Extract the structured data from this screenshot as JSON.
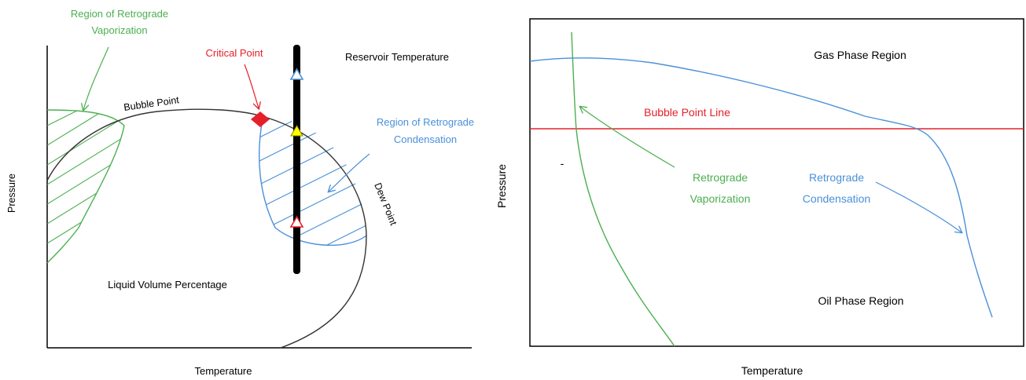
{
  "left_diagram": {
    "vaporization_label_line1": "Region of Retrograde",
    "vaporization_label_line2": "Vaporization",
    "critical_point_label": "Critical Point",
    "reservoir_temperature_label": "Reservoir Temperature",
    "bubble_point_label": "Bubble Point",
    "condensation_label_line1": "Region of Retrograde",
    "condensation_label_line2": "Condensation",
    "dew_point_label": "Dew Point",
    "liquid_volume_label": "Liquid Volume Percentage",
    "x_axis_label": "Temperature",
    "y_axis_label": "Pressure"
  },
  "right_diagram": {
    "gas_phase_label": "Gas Phase Region",
    "bubble_point_line_label": "Bubble Point Line",
    "retro_vaporization_line1": "Retrograde",
    "retro_vaporization_line2": "Vaporization",
    "retro_condensation_line1": "Retrograde",
    "retro_condensation_line2": "Condensation",
    "oil_phase_label": "Oil Phase Region",
    "x_axis_label": "Temperature",
    "y_axis_label": "Pressure",
    "stray_mark": "-"
  },
  "colors": {
    "green": "#4caf50",
    "blue": "#4a90d9",
    "red": "#e5202a",
    "black": "#000000",
    "curve_gray": "#333333",
    "marker_yellow": "#ffff00"
  }
}
